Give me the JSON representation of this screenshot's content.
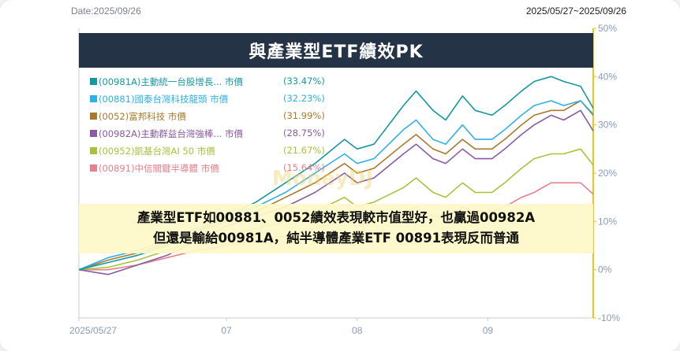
{
  "header": {
    "date_label": "Date:2025/09/26",
    "range_label": "2025/05/27~2025/09/26"
  },
  "watermark": "MoneyDJ",
  "chart_data": {
    "type": "line",
    "title": "與產業型ETF績效PK",
    "x_tick_labels": [
      "2025/05/27",
      "07",
      "08",
      "09"
    ],
    "x_ticks": [
      "2025-05-27",
      "2025-07-01",
      "2025-08-01",
      "2025-09-01"
    ],
    "x_range": [
      "2025-05-27",
      "2025-09-26"
    ],
    "y_ticks": [
      50,
      40,
      30,
      20,
      10,
      0,
      -10
    ],
    "y_tick_labels": [
      "50%",
      "40%",
      "30%",
      "20%",
      "10%",
      "0%",
      "-10%"
    ],
    "ylim": [
      -10,
      50
    ],
    "y_axis_side": "right",
    "legend_position": "top-left",
    "grid": false,
    "series": [
      {
        "name": "(00981A)主動統一台股增長... 市價",
        "final_label": "(33.47%)",
        "color": "#14999f",
        "points": [
          [
            "2025-05-27",
            0
          ],
          [
            "2025-06-03",
            1.5
          ],
          [
            "2025-06-10",
            3
          ],
          [
            "2025-06-17",
            5
          ],
          [
            "2025-06-24",
            8
          ],
          [
            "2025-07-01",
            11
          ],
          [
            "2025-07-08",
            14
          ],
          [
            "2025-07-15",
            18
          ],
          [
            "2025-07-22",
            22
          ],
          [
            "2025-07-29",
            27
          ],
          [
            "2025-08-01",
            25
          ],
          [
            "2025-08-05",
            26
          ],
          [
            "2025-08-12",
            34
          ],
          [
            "2025-08-15",
            37
          ],
          [
            "2025-08-19",
            33
          ],
          [
            "2025-08-22",
            31
          ],
          [
            "2025-08-26",
            36
          ],
          [
            "2025-08-29",
            33
          ],
          [
            "2025-09-02",
            32
          ],
          [
            "2025-09-05",
            34
          ],
          [
            "2025-09-09",
            37
          ],
          [
            "2025-09-12",
            39
          ],
          [
            "2025-09-16",
            40
          ],
          [
            "2025-09-19",
            39
          ],
          [
            "2025-09-23",
            38
          ],
          [
            "2025-09-26",
            33.47
          ]
        ]
      },
      {
        "name": "(00881)國泰台灣科技龍頭 市價",
        "final_label": "(32.23%)",
        "color": "#2fb0e6",
        "points": [
          [
            "2025-05-27",
            0
          ],
          [
            "2025-06-03",
            2.5
          ],
          [
            "2025-06-10",
            4
          ],
          [
            "2025-06-17",
            6
          ],
          [
            "2025-06-24",
            8.5
          ],
          [
            "2025-07-01",
            11
          ],
          [
            "2025-07-08",
            13
          ],
          [
            "2025-07-15",
            16
          ],
          [
            "2025-07-22",
            20
          ],
          [
            "2025-07-29",
            24
          ],
          [
            "2025-08-01",
            22
          ],
          [
            "2025-08-05",
            23
          ],
          [
            "2025-08-12",
            29
          ],
          [
            "2025-08-15",
            31
          ],
          [
            "2025-08-19",
            27
          ],
          [
            "2025-08-22",
            26
          ],
          [
            "2025-08-26",
            30
          ],
          [
            "2025-08-29",
            27
          ],
          [
            "2025-09-02",
            27
          ],
          [
            "2025-09-05",
            29
          ],
          [
            "2025-09-09",
            32
          ],
          [
            "2025-09-12",
            34
          ],
          [
            "2025-09-16",
            35
          ],
          [
            "2025-09-19",
            34
          ],
          [
            "2025-09-23",
            35
          ],
          [
            "2025-09-26",
            32.23
          ]
        ]
      },
      {
        "name": "(0052)富邦科技 市價",
        "final_label": "(31.99%)",
        "color": "#a97a2c",
        "points": [
          [
            "2025-05-27",
            0
          ],
          [
            "2025-06-03",
            2
          ],
          [
            "2025-06-10",
            3.5
          ],
          [
            "2025-06-17",
            5.5
          ],
          [
            "2025-06-24",
            8
          ],
          [
            "2025-07-01",
            10
          ],
          [
            "2025-07-08",
            12
          ],
          [
            "2025-07-15",
            15
          ],
          [
            "2025-07-22",
            18
          ],
          [
            "2025-07-29",
            22
          ],
          [
            "2025-08-01",
            20
          ],
          [
            "2025-08-05",
            21
          ],
          [
            "2025-08-12",
            26
          ],
          [
            "2025-08-15",
            28
          ],
          [
            "2025-08-19",
            25
          ],
          [
            "2025-08-22",
            24
          ],
          [
            "2025-08-26",
            27
          ],
          [
            "2025-08-29",
            25
          ],
          [
            "2025-09-02",
            25
          ],
          [
            "2025-09-05",
            27
          ],
          [
            "2025-09-09",
            30
          ],
          [
            "2025-09-12",
            32
          ],
          [
            "2025-09-16",
            33
          ],
          [
            "2025-09-19",
            33
          ],
          [
            "2025-09-23",
            35
          ],
          [
            "2025-09-26",
            31.99
          ]
        ]
      },
      {
        "name": "(00982A)主動群益台灣強棒... 市價",
        "final_label": "(28.75%)",
        "color": "#8a5aa3",
        "points": [
          [
            "2025-05-27",
            0
          ],
          [
            "2025-06-03",
            -1
          ],
          [
            "2025-06-10",
            1
          ],
          [
            "2025-06-17",
            3
          ],
          [
            "2025-06-24",
            6
          ],
          [
            "2025-07-01",
            9
          ],
          [
            "2025-07-08",
            11
          ],
          [
            "2025-07-15",
            13
          ],
          [
            "2025-07-22",
            16
          ],
          [
            "2025-07-29",
            20
          ],
          [
            "2025-08-01",
            18
          ],
          [
            "2025-08-05",
            19
          ],
          [
            "2025-08-12",
            24
          ],
          [
            "2025-08-15",
            26
          ],
          [
            "2025-08-19",
            23
          ],
          [
            "2025-08-22",
            22
          ],
          [
            "2025-08-26",
            25
          ],
          [
            "2025-08-29",
            23
          ],
          [
            "2025-09-02",
            23
          ],
          [
            "2025-09-05",
            25
          ],
          [
            "2025-09-09",
            28
          ],
          [
            "2025-09-12",
            30
          ],
          [
            "2025-09-16",
            32
          ],
          [
            "2025-09-19",
            31
          ],
          [
            "2025-09-23",
            33
          ],
          [
            "2025-09-26",
            28.75
          ]
        ]
      },
      {
        "name": "(00952)凱基台灣AI 50 市價",
        "final_label": "(21.67%)",
        "color": "#a6c43a",
        "points": [
          [
            "2025-05-27",
            0
          ],
          [
            "2025-06-03",
            0.5
          ],
          [
            "2025-06-10",
            2
          ],
          [
            "2025-06-17",
            4
          ],
          [
            "2025-06-24",
            6
          ],
          [
            "2025-07-01",
            7
          ],
          [
            "2025-07-08",
            8.5
          ],
          [
            "2025-07-15",
            10
          ],
          [
            "2025-07-22",
            12
          ],
          [
            "2025-07-29",
            15
          ],
          [
            "2025-08-01",
            13
          ],
          [
            "2025-08-05",
            14
          ],
          [
            "2025-08-12",
            17
          ],
          [
            "2025-08-15",
            19
          ],
          [
            "2025-08-19",
            16
          ],
          [
            "2025-08-22",
            15
          ],
          [
            "2025-08-26",
            18
          ],
          [
            "2025-08-29",
            16
          ],
          [
            "2025-09-02",
            16
          ],
          [
            "2025-09-05",
            18
          ],
          [
            "2025-09-09",
            21
          ],
          [
            "2025-09-12",
            23
          ],
          [
            "2025-09-16",
            24
          ],
          [
            "2025-09-19",
            24
          ],
          [
            "2025-09-23",
            25
          ],
          [
            "2025-09-26",
            21.67
          ]
        ]
      },
      {
        "name": "(00891)中信關鍵半導體 市價",
        "final_label": "(15.64%)",
        "color": "#e77f8c",
        "points": [
          [
            "2025-05-27",
            0
          ],
          [
            "2025-06-03",
            0
          ],
          [
            "2025-06-10",
            1
          ],
          [
            "2025-06-17",
            2.5
          ],
          [
            "2025-06-24",
            4
          ],
          [
            "2025-07-01",
            5
          ],
          [
            "2025-07-08",
            6
          ],
          [
            "2025-07-15",
            7
          ],
          [
            "2025-07-22",
            8.5
          ],
          [
            "2025-07-29",
            10
          ],
          [
            "2025-08-01",
            9
          ],
          [
            "2025-08-05",
            10
          ],
          [
            "2025-08-12",
            12
          ],
          [
            "2025-08-15",
            13
          ],
          [
            "2025-08-19",
            11
          ],
          [
            "2025-08-22",
            11
          ],
          [
            "2025-08-26",
            13
          ],
          [
            "2025-08-29",
            12
          ],
          [
            "2025-09-02",
            12
          ],
          [
            "2025-09-05",
            13
          ],
          [
            "2025-09-09",
            15
          ],
          [
            "2025-09-12",
            16
          ],
          [
            "2025-09-16",
            18
          ],
          [
            "2025-09-19",
            18
          ],
          [
            "2025-09-23",
            18
          ],
          [
            "2025-09-26",
            15.64
          ]
        ]
      }
    ]
  },
  "caption": {
    "line1": "產業型ETF如00881、0052績效表現較市值型好，也贏過00982A",
    "line2": "但還是輸給00981A，純半導體產業ETF 00891表現反而普通"
  }
}
